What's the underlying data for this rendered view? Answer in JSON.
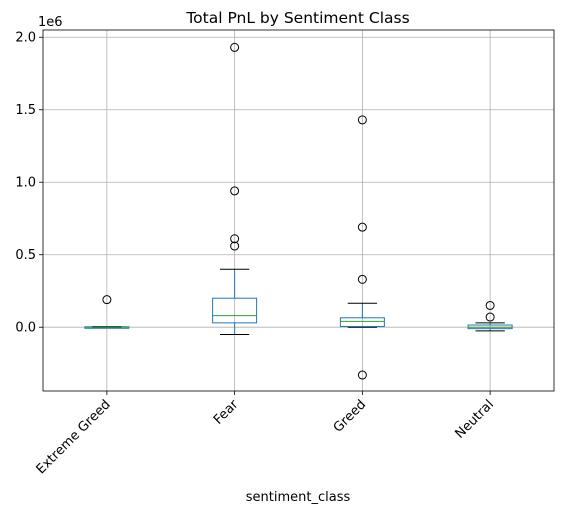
{
  "chart_data": {
    "type": "box",
    "title": "Total PnL by Sentiment Class",
    "xlabel": "sentiment_class",
    "ylabel": "",
    "y_scale_label": "1e6",
    "categories": [
      "Extreme Greed",
      "Fear",
      "Greed",
      "Neutral"
    ],
    "y_ticks": [
      0.0,
      0.5,
      1.0,
      1.5,
      2.0
    ],
    "y_tick_labels": [
      "0.0",
      "0.5",
      "1.0",
      "1.5",
      "2.0"
    ],
    "ylim": [
      -0.44,
      2.05
    ],
    "grid": true,
    "boxes": [
      {
        "category": "Extreme Greed",
        "whisker_low": -0.005,
        "q1": -0.003,
        "median": 0.0,
        "q3": 0.003,
        "whisker_high": 0.005,
        "outliers": [
          0.19
        ]
      },
      {
        "category": "Fear",
        "whisker_low": -0.05,
        "q1": 0.03,
        "median": 0.08,
        "q3": 0.2,
        "whisker_high": 0.4,
        "outliers": [
          0.56,
          0.61,
          0.94,
          1.93
        ]
      },
      {
        "category": "Greed",
        "whisker_low": 0.0,
        "q1": 0.005,
        "median": 0.04,
        "q3": 0.065,
        "whisker_high": 0.165,
        "outliers": [
          -0.33,
          0.33,
          0.69,
          1.43
        ]
      },
      {
        "category": "Neutral",
        "whisker_low": -0.025,
        "q1": -0.01,
        "median": 0.0,
        "q3": 0.015,
        "whisker_high": 0.03,
        "outliers": [
          0.07,
          0.15
        ]
      }
    ],
    "colors": {
      "box": "#1f77b4",
      "median": "#2ca02c",
      "grid": "#b0b0b0",
      "outlier_edge": "#000000"
    }
  }
}
